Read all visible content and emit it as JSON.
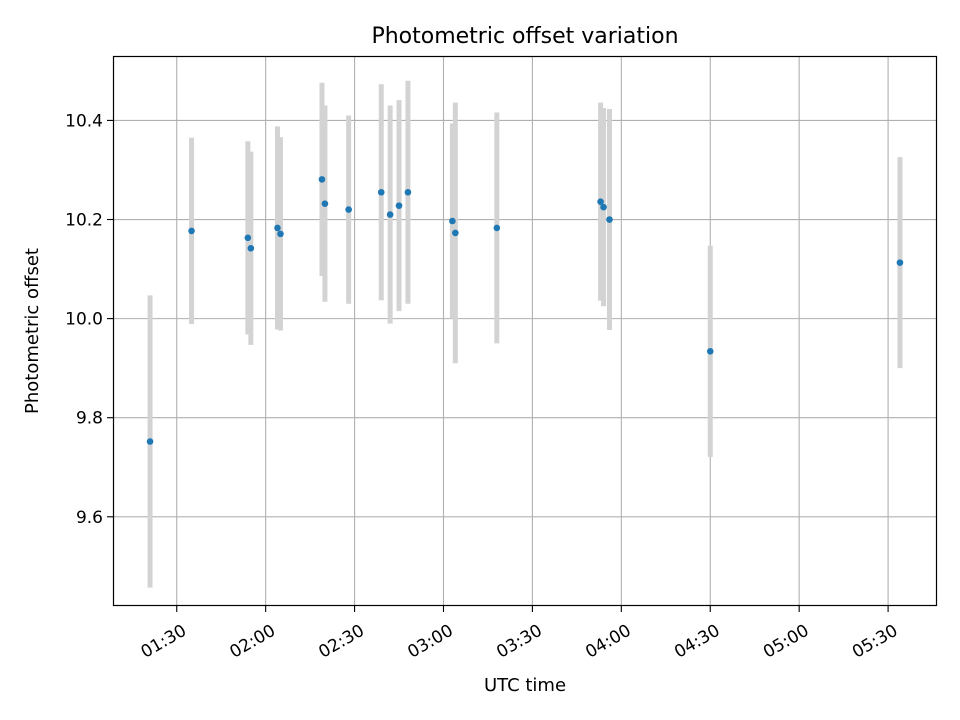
{
  "chart_data": {
    "type": "scatter",
    "title": "Photometric offset variation",
    "xlabel": "UTC time",
    "ylabel": "Photometric offset",
    "x_ticks": [
      "01:30",
      "02:00",
      "02:30",
      "03:00",
      "03:30",
      "04:00",
      "04:30",
      "05:00",
      "05:30"
    ],
    "y_ticks": [
      "9.6",
      "9.8",
      "10.0",
      "10.2",
      "10.4"
    ],
    "xlim": [
      "01:08:30",
      "05:46:30"
    ],
    "ylim": [
      9.42,
      10.53
    ],
    "grid": true,
    "colors": {
      "marker": "#1f77b4",
      "errorbar": "#d3d3d3",
      "grid": "#b0b0b0"
    },
    "points": [
      {
        "x": "01:21",
        "y": 9.752,
        "err": 0.295
      },
      {
        "x": "01:35",
        "y": 10.177,
        "err": 0.188
      },
      {
        "x": "01:54",
        "y": 10.163,
        "err": 0.195
      },
      {
        "x": "01:55",
        "y": 10.142,
        "err": 0.195
      },
      {
        "x": "02:04",
        "y": 10.183,
        "err": 0.205
      },
      {
        "x": "02:05",
        "y": 10.171,
        "err": 0.195
      },
      {
        "x": "02:19",
        "y": 10.281,
        "err": 0.195
      },
      {
        "x": "02:20",
        "y": 10.232,
        "err": 0.198
      },
      {
        "x": "02:28",
        "y": 10.22,
        "err": 0.19
      },
      {
        "x": "02:39",
        "y": 10.255,
        "err": 0.218
      },
      {
        "x": "02:42",
        "y": 10.21,
        "err": 0.22
      },
      {
        "x": "02:45",
        "y": 10.228,
        "err": 0.213
      },
      {
        "x": "02:48",
        "y": 10.255,
        "err": 0.225
      },
      {
        "x": "03:03",
        "y": 10.197,
        "err": 0.197
      },
      {
        "x": "03:04",
        "y": 10.173,
        "err": 0.263
      },
      {
        "x": "03:18",
        "y": 10.183,
        "err": 0.233
      },
      {
        "x": "03:53",
        "y": 10.236,
        "err": 0.2
      },
      {
        "x": "03:54",
        "y": 10.225,
        "err": 0.2
      },
      {
        "x": "03:56",
        "y": 10.2,
        "err": 0.223
      },
      {
        "x": "04:30",
        "y": 9.934,
        "err": 0.213
      },
      {
        "x": "05:34",
        "y": 10.113,
        "err": 0.213
      }
    ]
  }
}
